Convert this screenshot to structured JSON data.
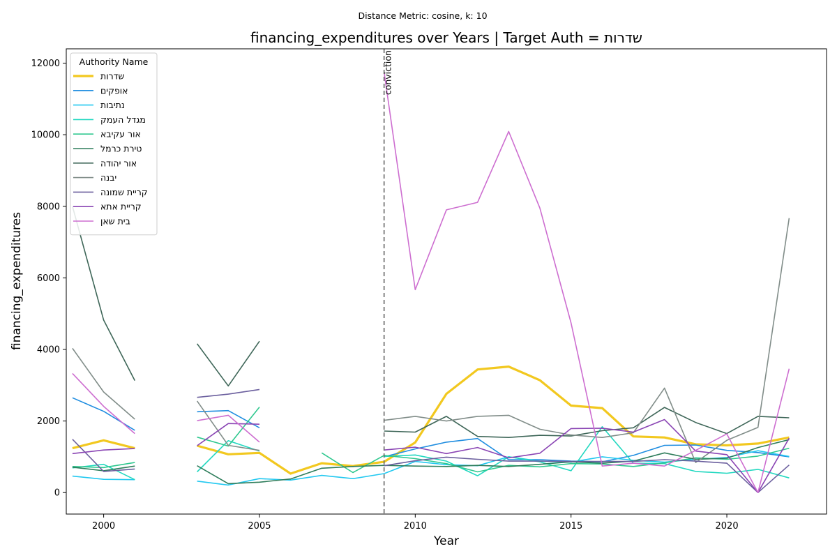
{
  "chart_data": {
    "type": "line",
    "suptitle": "Distance Metric: cosine, k: 10",
    "title": "financing_expenditures over Years | Target Auth = שדרות",
    "xlabel": "Year",
    "ylabel": "financing_expenditures",
    "xlim": [
      1998.8,
      2023.2
    ],
    "ylim": [
      -600,
      12400
    ],
    "xticks": [
      2000,
      2005,
      2010,
      2015,
      2020
    ],
    "yticks": [
      0,
      2000,
      4000,
      6000,
      8000,
      10000,
      12000
    ],
    "grid": false,
    "legend": {
      "title": "Authority Name",
      "placement": "top-left"
    },
    "annotation": {
      "x": 2009,
      "label": "conviction"
    },
    "x": [
      1999,
      2000,
      2001,
      2002,
      2003,
      2004,
      2005,
      2006,
      2007,
      2008,
      2009,
      2010,
      2011,
      2012,
      2013,
      2014,
      2015,
      2016,
      2017,
      2018,
      2019,
      2020,
      2021,
      2022
    ],
    "series": [
      {
        "name": "שדרות",
        "color": "#f2c81f",
        "width": 3.2,
        "values": [
          1240,
          1460,
          1240,
          null,
          1310,
          1070,
          1110,
          530,
          820,
          740,
          860,
          1400,
          2760,
          3440,
          3520,
          3140,
          2430,
          2360,
          1570,
          1540,
          1350,
          1320,
          1370,
          1540
        ]
      },
      {
        "name": "אופקים",
        "color": "#1f8de0",
        "width": 1.6,
        "values": [
          2650,
          2270,
          1740,
          null,
          2260,
          2290,
          1810,
          null,
          null,
          null,
          1000,
          1220,
          1410,
          1510,
          920,
          920,
          880,
          860,
          1040,
          1320,
          1330,
          1180,
          1120,
          1000
        ]
      },
      {
        "name": "נתיבות",
        "color": "#22c8f0",
        "width": 1.6,
        "values": [
          460,
          370,
          360,
          null,
          320,
          210,
          390,
          350,
          480,
          390,
          530,
          870,
          780,
          750,
          1000,
          880,
          850,
          1000,
          900,
          850,
          930,
          980,
          1170,
          1010
        ]
      },
      {
        "name": "מגדל העמק",
        "color": "#22d8c0",
        "width": 1.6,
        "values": [
          690,
          790,
          360,
          null,
          580,
          1450,
          1160,
          null,
          null,
          null,
          1010,
          1050,
          880,
          470,
          1000,
          860,
          610,
          1840,
          820,
          810,
          590,
          540,
          650,
          410
        ]
      },
      {
        "name": "אור עקיבא",
        "color": "#2fc88f",
        "width": 1.6,
        "values": [
          730,
          700,
          840,
          null,
          1550,
          1300,
          2390,
          null,
          1110,
          560,
          1040,
          950,
          810,
          580,
          760,
          720,
          810,
          800,
          730,
          830,
          970,
          930,
          1020,
          1240
        ]
      },
      {
        "name": "טירת כרמל",
        "color": "#2e7d5b",
        "width": 1.6,
        "values": [
          710,
          610,
          740,
          null,
          750,
          250,
          290,
          380,
          680,
          730,
          760,
          740,
          730,
          760,
          730,
          790,
          860,
          820,
          880,
          1110,
          930,
          960,
          1260,
          1480
        ]
      },
      {
        "name": "אור יהודה",
        "color": "#3e6658",
        "width": 1.6,
        "values": [
          8000,
          4820,
          3130,
          null,
          4160,
          2980,
          4230,
          null,
          null,
          null,
          1720,
          1690,
          2130,
          1570,
          1540,
          1600,
          1580,
          1730,
          1810,
          2380,
          1960,
          1650,
          2130,
          2090
        ]
      },
      {
        "name": "יבנה",
        "color": "#818d89",
        "width": 1.6,
        "values": [
          4030,
          2810,
          2050,
          null,
          2560,
          1320,
          1180,
          null,
          null,
          null,
          2020,
          2130,
          2000,
          2130,
          2160,
          1770,
          1610,
          1540,
          1670,
          2920,
          840,
          1460,
          1820,
          7670
        ]
      },
      {
        "name": "קריית שמונה",
        "color": "#6b5f9e",
        "width": 1.6,
        "values": [
          1490,
          590,
          660,
          null,
          2660,
          2750,
          2880,
          null,
          null,
          null,
          750,
          890,
          990,
          930,
          880,
          880,
          870,
          870,
          870,
          920,
          880,
          820,
          0,
          770
        ]
      },
      {
        "name": "קריית אתא",
        "color": "#8a45b4",
        "width": 1.6,
        "values": [
          1090,
          1190,
          1230,
          null,
          1310,
          1930,
          1910,
          null,
          null,
          null,
          1190,
          1270,
          1090,
          1260,
          970,
          1100,
          1790,
          1800,
          1690,
          2040,
          1160,
          1060,
          0,
          1520
        ]
      },
      {
        "name": "בית שאן",
        "color": "#cd6ed0",
        "width": 1.6,
        "values": [
          3330,
          2410,
          1650,
          null,
          2010,
          2160,
          1410,
          null,
          null,
          null,
          11750,
          5670,
          7900,
          8110,
          10090,
          7950,
          4740,
          740,
          820,
          740,
          1180,
          1640,
          0,
          3460
        ]
      }
    ]
  }
}
